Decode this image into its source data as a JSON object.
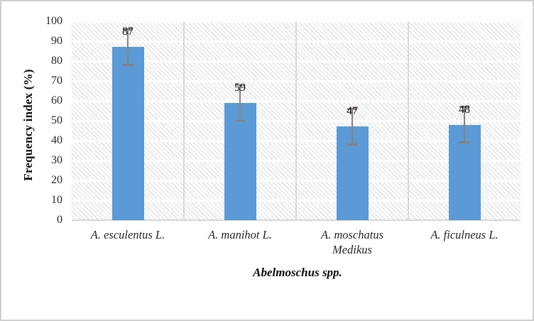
{
  "chart_data": {
    "type": "bar",
    "title": "",
    "xlabel": "Abelmoschus spp.",
    "ylabel": "Frequency index (%)",
    "categories": [
      "A. esculentus L.",
      "A. manihot L.",
      "A. moschatus Medikus",
      "A. ficulneus L."
    ],
    "values": [
      87,
      59,
      47,
      48
    ],
    "data_labels": [
      "87",
      "59",
      "47",
      "48"
    ],
    "error_bars": [
      9,
      9,
      9,
      9
    ],
    "ylim": [
      0,
      100
    ],
    "ytick_step": 10,
    "yticks": [
      0,
      10,
      20,
      30,
      40,
      50,
      60,
      70,
      80,
      90,
      100
    ],
    "grid": true,
    "legend": "none",
    "plot_background_pattern": "light-downward-diagonal-hatch",
    "colors": {
      "bar": "#5b9ad5",
      "error_bar": "#8a8177",
      "gridline": "#ffffff",
      "category_separator": "#d9d9d9",
      "axis_line": "#d6d6d6",
      "hatch_line": "#dedede",
      "tick_label": "#262626",
      "figure_border": "#cfcfcf"
    }
  }
}
